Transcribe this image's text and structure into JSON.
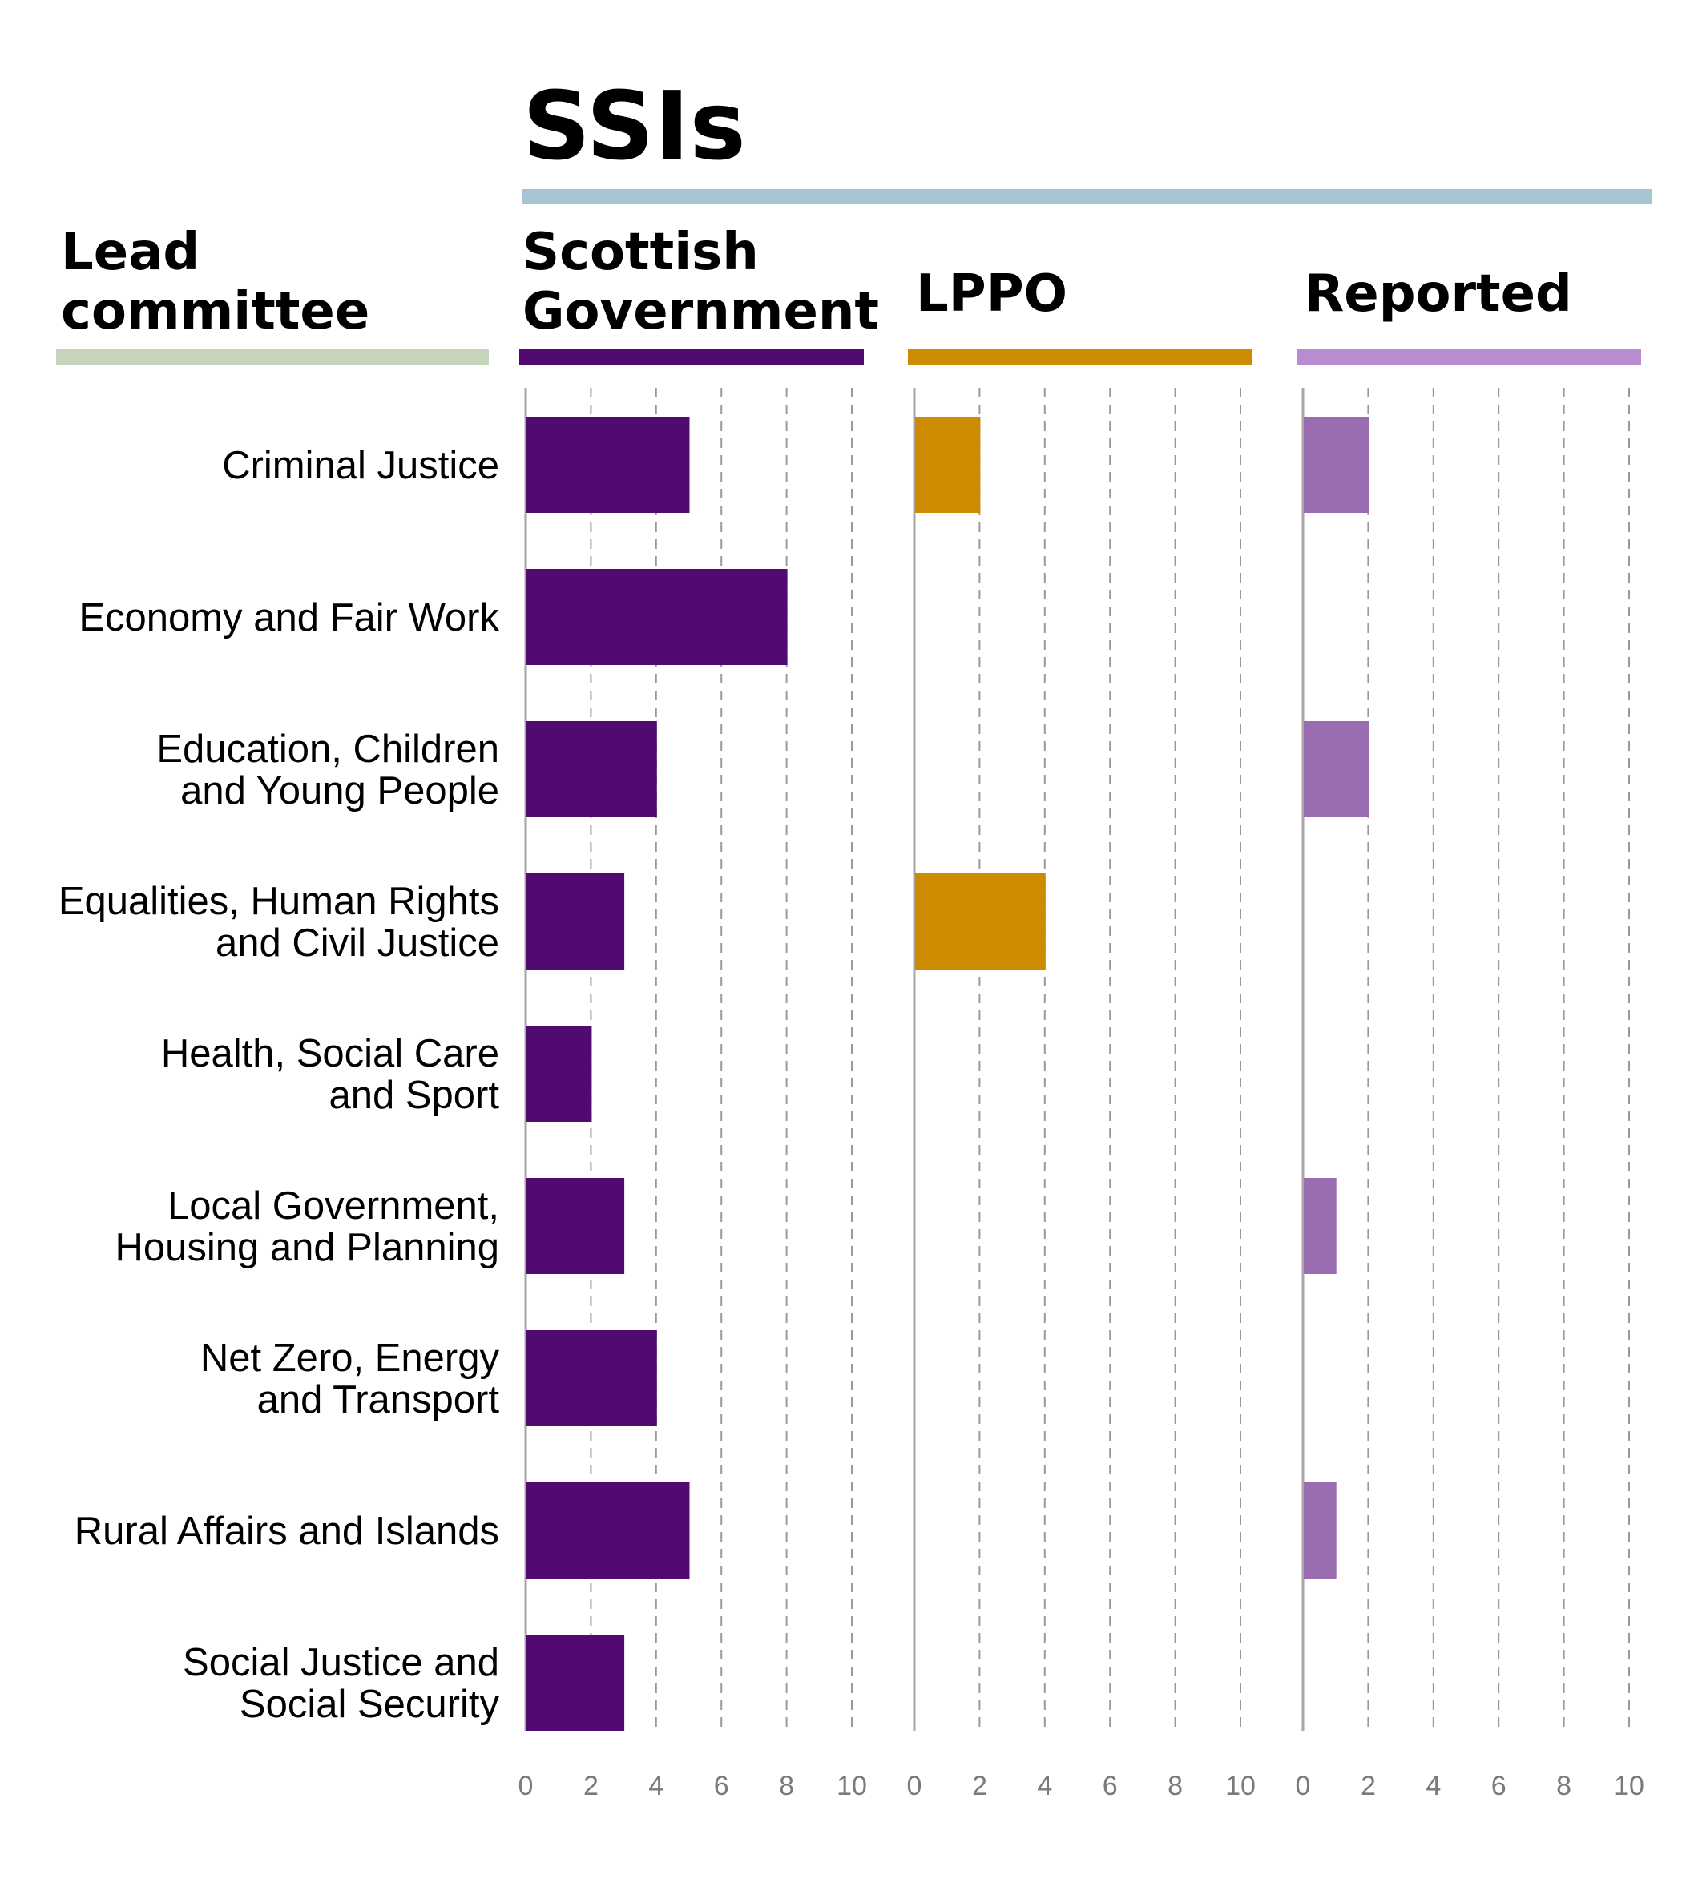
{
  "chart_data": {
    "type": "bar",
    "orientation": "horizontal",
    "title": "SSIs",
    "category_header": [
      "Lead",
      "committee"
    ],
    "categories": [
      [
        "Criminal Justice"
      ],
      [
        "Economy and Fair Work"
      ],
      [
        "Education, Children",
        "and Young People"
      ],
      [
        "Equalities, Human Rights",
        "and Civil Justice"
      ],
      [
        "Health, Social Care",
        "and Sport"
      ],
      [
        "Local Government,",
        "Housing and Planning"
      ],
      [
        "Net Zero, Energy",
        "and Transport"
      ],
      [
        "Rural Affairs and Islands"
      ],
      [
        "Social Justice and",
        "Social Security"
      ]
    ],
    "xlim": [
      0,
      10
    ],
    "xticks": [
      0,
      2,
      4,
      6,
      8,
      10
    ],
    "grid": "dashed vertical",
    "series": [
      {
        "name_lines": [
          "Scottish",
          "Government"
        ],
        "color": "#520a73",
        "header_color": "#520a73",
        "values": [
          5,
          8,
          4,
          3,
          2,
          3,
          4,
          5,
          3
        ]
      },
      {
        "name_lines": [
          "LPPO"
        ],
        "color": "#cc8b00",
        "header_color": "#cc8b00",
        "values": [
          2,
          0,
          0,
          4,
          0,
          0,
          0,
          0,
          0
        ]
      },
      {
        "name_lines": [
          "Reported"
        ],
        "color": "#9a6db1",
        "header_color": "#b98bd0",
        "values": [
          2,
          0,
          2,
          0,
          0,
          1,
          0,
          1,
          0
        ]
      }
    ],
    "colors": {
      "title_rule": "#a7c6d3",
      "category_rule": "#c6d6bc",
      "axis": "#a6a6a6",
      "grid": "#9a9a9a"
    }
  }
}
